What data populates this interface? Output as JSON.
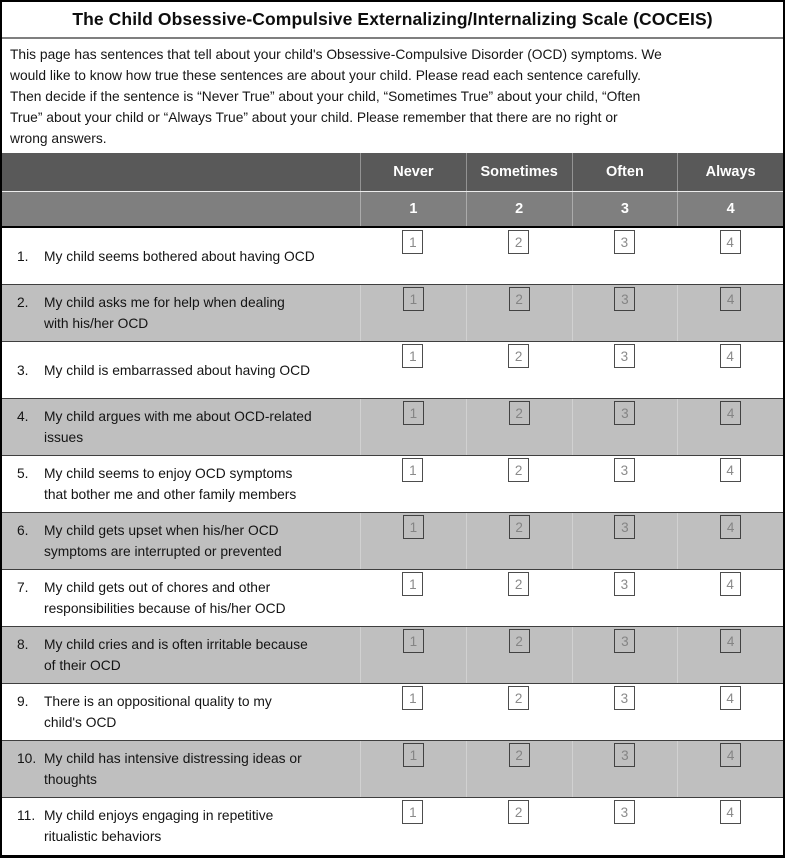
{
  "title": "The Child Obsessive-Compulsive Externalizing/Internalizing Scale (COCEIS)",
  "instructions": "This page has sentences that tell about your child's Obsessive-Compulsive Disorder (OCD) symptoms. We\nwould like to know how true these sentences are about your child. Please read each sentence carefully.\nThen decide if the sentence is “Never True” about your child, “Sometimes True” about your child, “Often\nTrue” about your child or “Always True” about your child. Please remember that there are no right or\nwrong answers.",
  "scale": {
    "labels": [
      "Never",
      "Sometimes",
      "Often",
      "Always"
    ],
    "values": [
      "1",
      "2",
      "3",
      "4"
    ]
  },
  "questions": [
    {
      "number": "1.",
      "text": "My child seems bothered about having OCD"
    },
    {
      "number": "2.",
      "text": "My child asks me for help when dealing\nwith his/her OCD"
    },
    {
      "number": "3.",
      "text": "My child is embarrassed about having OCD"
    },
    {
      "number": "4.",
      "text": "My child argues with me about OCD-related\nissues"
    },
    {
      "number": "5.",
      "text": "My child seems to enjoy OCD symptoms\nthat bother me and other family members"
    },
    {
      "number": "6.",
      "text": "My child gets upset when his/her OCD\nsymptoms are interrupted or prevented"
    },
    {
      "number": "7.",
      "text": "My child gets out of chores and other\nresponsibilities because of his/her OCD"
    },
    {
      "number": "8.",
      "text": "My child cries and is often irritable because\nof their OCD"
    },
    {
      "number": "9.",
      "text": "There is an oppositional quality to my\nchild's OCD"
    },
    {
      "number": "10.",
      "text": "My child has intensive distressing ideas or\nthoughts"
    },
    {
      "number": "11.",
      "text": "My child enjoys engaging in repetitive\nritualistic behaviors"
    }
  ],
  "colors": {
    "header_dark": "#595959",
    "header_mid": "#7f7f7f",
    "row_gray": "#bfbfbf",
    "row_white": "#ffffff",
    "border_black": "#000000",
    "checkbox_number": "#8a8a8a"
  }
}
